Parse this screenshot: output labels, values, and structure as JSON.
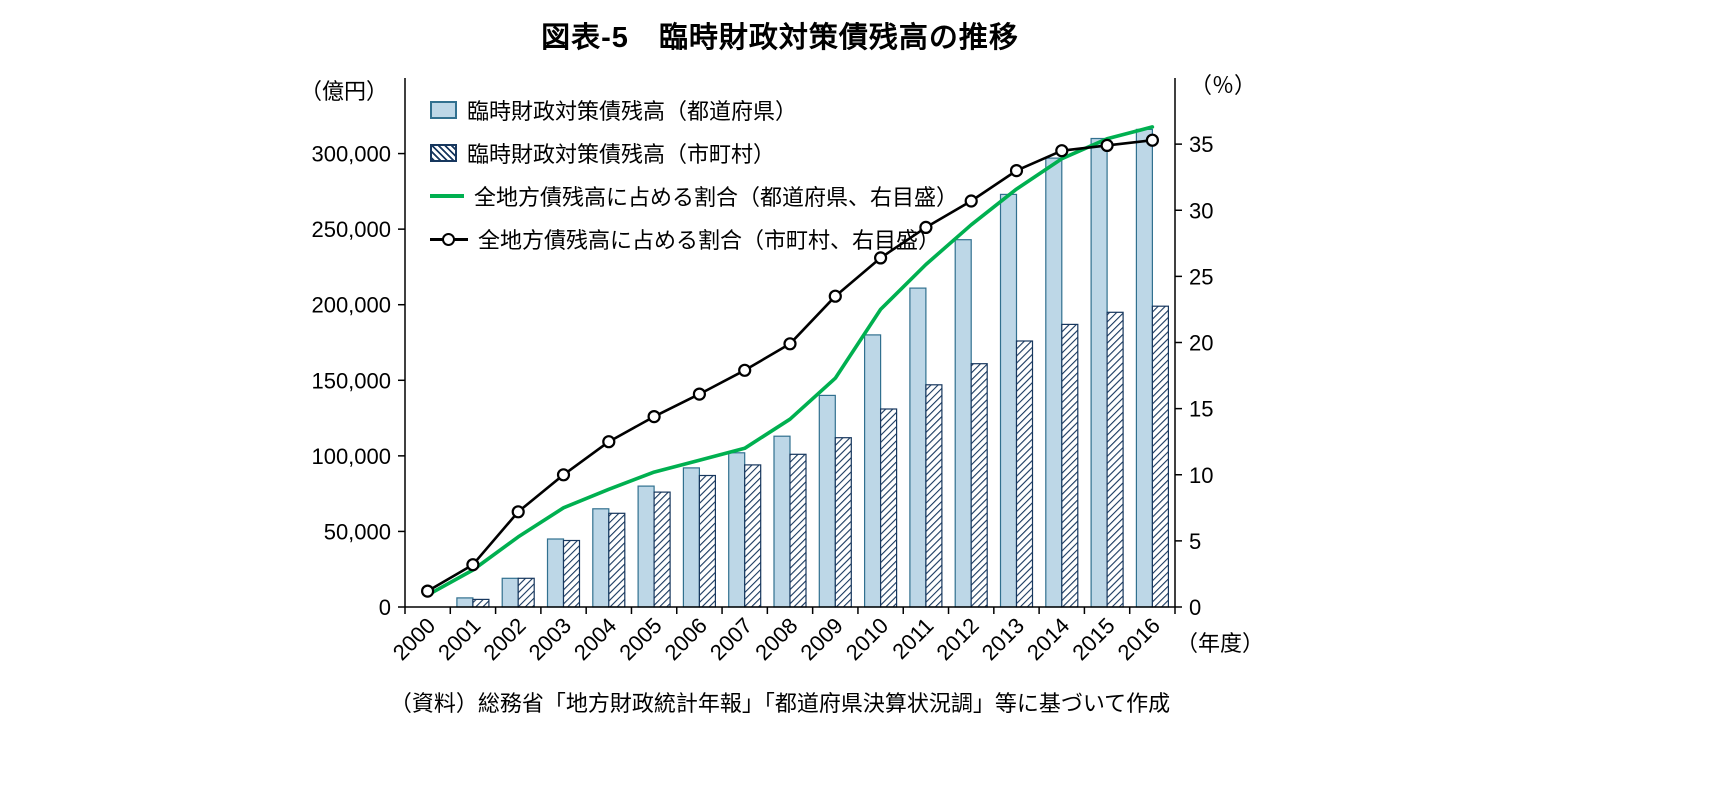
{
  "page": {
    "title": "図表-5　臨時財政対策債残高の推移",
    "source_note": "（資料）総務省「地方財政統計年報」「都道府県決算状況調」等に基づいて作成"
  },
  "chart_data": {
    "type": "combo-bar-line",
    "title": "図表-5 臨時財政対策債残高の推移",
    "categories": [
      "2000",
      "2001",
      "2002",
      "2003",
      "2004",
      "2005",
      "2006",
      "2007",
      "2008",
      "2009",
      "2010",
      "2011",
      "2012",
      "2013",
      "2014",
      "2015",
      "2016"
    ],
    "x_axis_label": "（年度）",
    "left_axis": {
      "label": "（億円）",
      "min": 0,
      "max": 350000,
      "tick_interval": 50000,
      "tick_top": 300000
    },
    "right_axis": {
      "label": "（％）",
      "min": 0,
      "max": 40,
      "tick_interval": 5,
      "tick_top": 35
    },
    "grid": false,
    "legend_position": "upper-left-inside",
    "series": [
      {
        "name": "臨時財政対策債残高（都道府県）",
        "type": "bar",
        "axis": "left",
        "color": "#bdd7e7",
        "border_color": "#31708f",
        "values": [
          0,
          6000,
          19000,
          45000,
          65000,
          80000,
          92000,
          102000,
          113000,
          140000,
          180000,
          211000,
          243000,
          273000,
          297000,
          310000,
          316000
        ]
      },
      {
        "name": "臨時財政対策債残高（市町村）",
        "type": "bar",
        "axis": "left",
        "color": "#17375e",
        "pattern": "diagonal-hatch",
        "values": [
          0,
          5000,
          19000,
          44000,
          62000,
          76000,
          87000,
          94000,
          101000,
          112000,
          131000,
          147000,
          161000,
          176000,
          187000,
          195000,
          199000
        ]
      },
      {
        "name": "全地方債残高に占める割合（都道府県、右目盛）",
        "type": "line",
        "axis": "right",
        "color": "#00b050",
        "marker": "none",
        "values": [
          0.9,
          2.8,
          5.3,
          7.5,
          8.9,
          10.2,
          11.1,
          12.0,
          14.2,
          17.3,
          22.5,
          25.9,
          28.9,
          31.6,
          33.9,
          35.4,
          36.3
        ]
      },
      {
        "name": "全地方債残高に占める割合（市町村、右目盛）",
        "type": "line",
        "axis": "right",
        "color": "#000000",
        "marker": "open-circle",
        "values": [
          1.2,
          3.2,
          7.2,
          10.0,
          12.5,
          14.4,
          16.1,
          17.9,
          19.9,
          23.5,
          26.4,
          28.7,
          30.7,
          33.0,
          34.5,
          34.9,
          35.3
        ]
      }
    ]
  }
}
